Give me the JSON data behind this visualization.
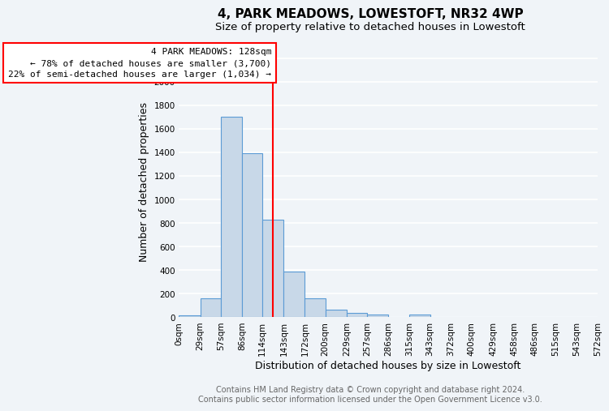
{
  "title": "4, PARK MEADOWS, LOWESTOFT, NR32 4WP",
  "subtitle": "Size of property relative to detached houses in Lowestoft",
  "xlabel": "Distribution of detached houses by size in Lowestoft",
  "ylabel": "Number of detached properties",
  "bar_edges": [
    0,
    29,
    57,
    86,
    114,
    143,
    172,
    200,
    229,
    257,
    286,
    315,
    343,
    372,
    400,
    429,
    458,
    486,
    515,
    543,
    572
  ],
  "bar_heights": [
    15,
    160,
    1700,
    1390,
    830,
    385,
    160,
    65,
    35,
    25,
    5,
    25,
    5,
    0,
    0,
    0,
    0,
    0,
    0,
    0
  ],
  "bar_color": "#c8d8e8",
  "bar_edgecolor": "#5b9bd5",
  "vline_x": 128,
  "vline_color": "red",
  "annotation_title": "4 PARK MEADOWS: 128sqm",
  "annotation_line1": "← 78% of detached houses are smaller (3,700)",
  "annotation_line2": "22% of semi-detached houses are larger (1,034) →",
  "annotation_box_edgecolor": "red",
  "annotation_box_facecolor": "white",
  "ylim": [
    0,
    2300
  ],
  "yticks": [
    0,
    200,
    400,
    600,
    800,
    1000,
    1200,
    1400,
    1600,
    1800,
    2000,
    2200
  ],
  "tick_labels": [
    "0sqm",
    "29sqm",
    "57sqm",
    "86sqm",
    "114sqm",
    "143sqm",
    "172sqm",
    "200sqm",
    "229sqm",
    "257sqm",
    "286sqm",
    "315sqm",
    "343sqm",
    "372sqm",
    "400sqm",
    "429sqm",
    "458sqm",
    "486sqm",
    "515sqm",
    "543sqm",
    "572sqm"
  ],
  "footer1": "Contains HM Land Registry data © Crown copyright and database right 2024.",
  "footer2": "Contains public sector information licensed under the Open Government Licence v3.0.",
  "bg_color": "#f0f4f8",
  "grid_color": "#ffffff",
  "title_fontsize": 11,
  "subtitle_fontsize": 9.5,
  "axis_label_fontsize": 9,
  "tick_fontsize": 7.5,
  "annotation_fontsize": 8,
  "footer_fontsize": 7
}
